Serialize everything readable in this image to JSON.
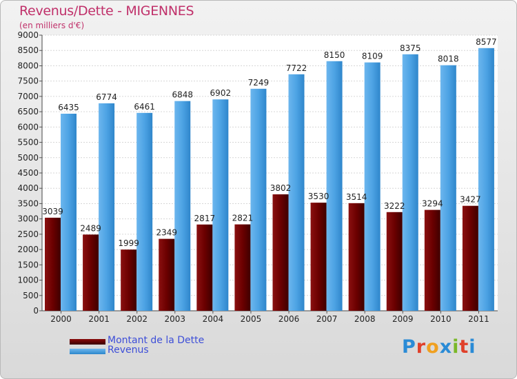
{
  "title": "Revenus/Dette - MIGENNES",
  "subtitle": "(en milliers d'€)",
  "brand": {
    "text": "Proxiti",
    "letter_colors": [
      "#2a8bd6",
      "#e0402a",
      "#f0a020",
      "#2a8bd6",
      "#7ab828",
      "#e0402a",
      "#2a8bd6"
    ]
  },
  "legend": [
    {
      "label": "Montant de la Dette",
      "color": "#6b0000"
    },
    {
      "label": "Revenus",
      "color": "#4da3e4"
    }
  ],
  "chart_data": {
    "type": "bar",
    "title": "Revenus/Dette - MIGENNES",
    "ylabel": "(en milliers d'€)",
    "xlabel": "",
    "categories": [
      "2000",
      "2001",
      "2002",
      "2003",
      "2004",
      "2005",
      "2006",
      "2007",
      "2008",
      "2009",
      "2010",
      "2011"
    ],
    "series": [
      {
        "name": "Montant de la Dette",
        "color": "#6b0000",
        "values": [
          3039,
          2489,
          1999,
          2349,
          2817,
          2821,
          3802,
          3530,
          3514,
          3222,
          3294,
          3427
        ],
        "labels": [
          "3039",
          "2489",
          "1999",
          "2349",
          "2817",
          "2821",
          "3802",
          "3530",
          "3514",
          "3222",
          "3294",
          "3427"
        ]
      },
      {
        "name": "Revenus",
        "color": "#4da3e4",
        "values": [
          6435,
          6774,
          6461,
          6848,
          6902,
          7249,
          7722,
          8150,
          8109,
          8375,
          8018,
          8577
        ],
        "labels": [
          "6435",
          "6774",
          "6461",
          "6848",
          "6902",
          "7249",
          "7722",
          "8150",
          "8109",
          "8375",
          "8018",
          "8577"
        ]
      }
    ],
    "ylim": [
      0,
      9000
    ],
    "yticks": [
      "0",
      "500",
      "1000",
      "1500",
      "2000",
      "2500",
      "3000",
      "3500",
      "4000",
      "4500",
      "5000",
      "5500",
      "6000",
      "6500",
      "7000",
      "7500",
      "8000",
      "8500",
      "9000"
    ],
    "grid": true,
    "legend_position": "bottom-left"
  }
}
